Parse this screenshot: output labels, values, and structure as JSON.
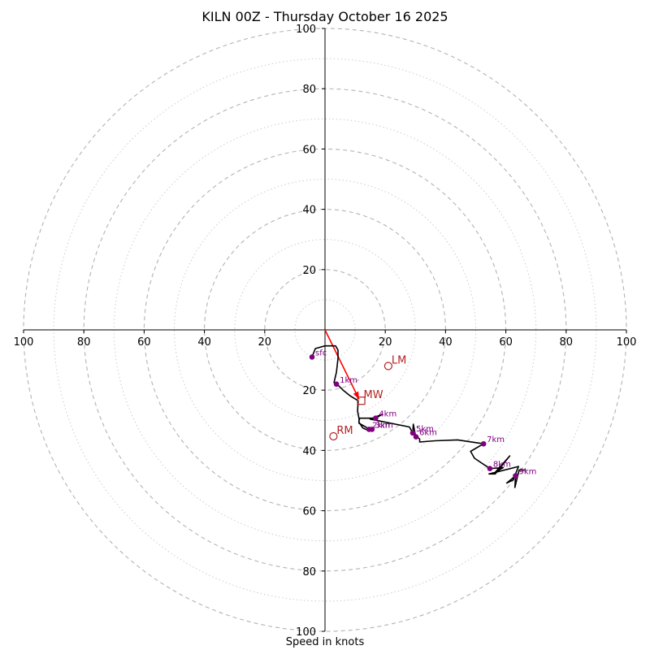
{
  "chart_data": {
    "type": "hodograph",
    "title": "KILN 00Z - Thursday October 16 2025",
    "xlabel": "Speed in knots",
    "max_speed": 100,
    "ring_major": [
      20,
      40,
      60,
      80,
      100
    ],
    "ring_minor": [
      10,
      30,
      50,
      70,
      90
    ],
    "x_ticks": [
      {
        "value": -100,
        "label": "100"
      },
      {
        "value": -80,
        "label": "80"
      },
      {
        "value": -60,
        "label": "60"
      },
      {
        "value": -40,
        "label": "40"
      },
      {
        "value": -20,
        "label": "20"
      },
      {
        "value": 20,
        "label": "20"
      },
      {
        "value": 40,
        "label": "40"
      },
      {
        "value": 60,
        "label": "60"
      },
      {
        "value": 80,
        "label": "80"
      },
      {
        "value": 100,
        "label": "100"
      }
    ],
    "y_ticks": [
      {
        "value": 100,
        "label": "100"
      },
      {
        "value": 80,
        "label": "80"
      },
      {
        "value": 60,
        "label": "60"
      },
      {
        "value": 40,
        "label": "40"
      },
      {
        "value": 20,
        "label": "20"
      },
      {
        "value": -20,
        "label": "20"
      },
      {
        "value": -40,
        "label": "40"
      },
      {
        "value": -60,
        "label": "60"
      },
      {
        "value": -80,
        "label": "80"
      },
      {
        "value": -100,
        "label": "100"
      }
    ],
    "trace": [
      [
        -4.3,
        -9
      ],
      [
        -3.2,
        -6.2
      ],
      [
        0,
        -5.3
      ],
      [
        3.5,
        -5.3
      ],
      [
        4.3,
        -6.7
      ],
      [
        4.3,
        -9.5
      ],
      [
        3.8,
        -14
      ],
      [
        3,
        -17.5
      ],
      [
        4,
        -18
      ],
      [
        6,
        -20
      ],
      [
        8.5,
        -22
      ],
      [
        11,
        -23.5
      ],
      [
        10.8,
        -27
      ],
      [
        11.3,
        -29.5
      ],
      [
        11.3,
        -31
      ],
      [
        13.5,
        -32.2
      ],
      [
        14.5,
        -33
      ],
      [
        15.6,
        -33
      ],
      [
        14,
        -33.2
      ],
      [
        12.5,
        -32.5
      ],
      [
        11.2,
        -30.5
      ],
      [
        11.5,
        -29.3
      ],
      [
        16.8,
        -29.3
      ],
      [
        19,
        -28
      ],
      [
        15,
        -29.6
      ],
      [
        21,
        -30.8
      ],
      [
        28,
        -32.2
      ],
      [
        29.1,
        -34.2
      ],
      [
        29.3,
        -31.3
      ],
      [
        30,
        -35
      ],
      [
        31.4,
        -36.2
      ],
      [
        31.4,
        -37.2
      ],
      [
        36.5,
        -36.8
      ],
      [
        44,
        -36.5
      ],
      [
        52.6,
        -37.8
      ],
      [
        48.3,
        -40.3
      ],
      [
        49.6,
        -42.6
      ],
      [
        54.7,
        -46
      ],
      [
        59.1,
        -45.7
      ],
      [
        56.5,
        -47.2
      ],
      [
        61.3,
        -41.8
      ],
      [
        56.5,
        -47.8
      ],
      [
        54.4,
        -47.8
      ],
      [
        64.2,
        -45.3
      ],
      [
        62.4,
        -49.8
      ],
      [
        60.3,
        -50.8
      ],
      [
        63.2,
        -48.4
      ],
      [
        63,
        -52.3
      ],
      [
        64.4,
        -46.5
      ],
      [
        66.7,
        -46.5
      ]
    ],
    "height_markers": [
      {
        "label": "sfc",
        "u": -4.3,
        "v": -9
      },
      {
        "label": "1km",
        "u": 3.8,
        "v": -18
      },
      {
        "label": "2km",
        "u": 14.6,
        "v": -33
      },
      {
        "label": "3km",
        "u": 15.6,
        "v": -33
      },
      {
        "label": "4km",
        "u": 16.8,
        "v": -29.3
      },
      {
        "label": "5km",
        "u": 29.1,
        "v": -34.2
      },
      {
        "label": "6km",
        "u": 30.2,
        "v": -35.5
      },
      {
        "label": "7km",
        "u": 52.6,
        "v": -37.8
      },
      {
        "label": "8km",
        "u": 54.7,
        "v": -46
      },
      {
        "label": "9km",
        "u": 63.2,
        "v": -48.4
      }
    ],
    "storm_motion": {
      "LM": {
        "label": "LM",
        "u": 21,
        "v": -12
      },
      "RM": {
        "label": "RM",
        "u": 2.8,
        "v": -35.3
      },
      "MW": {
        "label": "MW",
        "u": 12,
        "v": -23.5
      }
    },
    "shear_vector": {
      "from": [
        0,
        0
      ],
      "to": [
        11.3,
        -23
      ]
    },
    "colors": {
      "trace": "#000000",
      "markers": "#800080",
      "storm": "#b22222",
      "shear": "#ff0000",
      "rings": "#b3b3b3",
      "axes": "#000000"
    }
  }
}
